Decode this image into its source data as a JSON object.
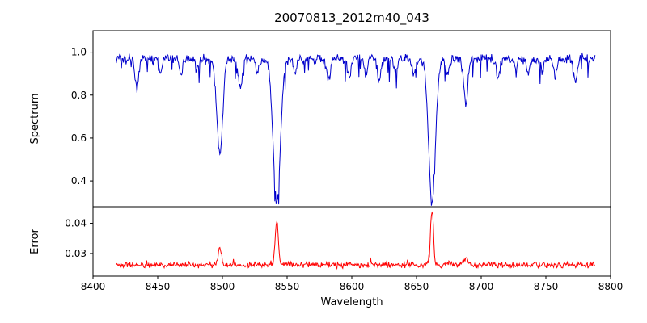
{
  "title": "20070813_2012m40_043",
  "chart_data": {
    "type": "line",
    "title": "20070813_2012m40_043",
    "xlabel": "Wavelength",
    "xlim": [
      8400,
      8800
    ],
    "x_range": [
      8418,
      8788
    ],
    "x_step": 0.5,
    "seed": 42,
    "xticks": [
      8400,
      8450,
      8500,
      8550,
      8600,
      8650,
      8700,
      8750,
      8800
    ],
    "xtick_labels": [
      "8400",
      "8450",
      "8500",
      "8550",
      "8600",
      "8650",
      "8700",
      "8750",
      "8800"
    ],
    "grid": false,
    "legend": "none",
    "panels": [
      {
        "name": "spectrum",
        "ylabel": "Spectrum",
        "ylim": [
          0.28,
          1.1
        ],
        "yticks": [
          0.4,
          0.6,
          0.8,
          1.0
        ],
        "ytick_labels": [
          "0.4",
          "0.6",
          "0.8",
          "1.0"
        ],
        "color": "#0000cc",
        "baseline": 0.968,
        "noise": 0.028,
        "dip_prob": 0.05,
        "dip_max": 0.1,
        "absorption_lines": [
          {
            "center": 8434,
            "depth": 0.14,
            "width": 1.4
          },
          {
            "center": 8452,
            "depth": 0.07,
            "width": 1.2
          },
          {
            "center": 8468,
            "depth": 0.08,
            "width": 1.2
          },
          {
            "center": 8480,
            "depth": 0.06,
            "width": 1.1
          },
          {
            "center": 8498,
            "depth": 0.45,
            "width": 2.2
          },
          {
            "center": 8514,
            "depth": 0.13,
            "width": 1.5
          },
          {
            "center": 8527,
            "depth": 0.07,
            "width": 1.2
          },
          {
            "center": 8542,
            "depth": 0.665,
            "width": 2.8
          },
          {
            "center": 8556,
            "depth": 0.06,
            "width": 1.1
          },
          {
            "center": 8582,
            "depth": 0.1,
            "width": 1.4
          },
          {
            "center": 8598,
            "depth": 0.09,
            "width": 1.3
          },
          {
            "center": 8611,
            "depth": 0.07,
            "width": 1.2
          },
          {
            "center": 8621,
            "depth": 0.1,
            "width": 1.3
          },
          {
            "center": 8634,
            "depth": 0.06,
            "width": 1.1
          },
          {
            "center": 8648,
            "depth": 0.07,
            "width": 1.2
          },
          {
            "center": 8662,
            "depth": 0.665,
            "width": 2.6
          },
          {
            "center": 8674,
            "depth": 0.08,
            "width": 1.2
          },
          {
            "center": 8688,
            "depth": 0.2,
            "width": 1.6
          },
          {
            "center": 8713,
            "depth": 0.09,
            "width": 1.3
          },
          {
            "center": 8727,
            "depth": 0.06,
            "width": 1.1
          },
          {
            "center": 8736,
            "depth": 0.07,
            "width": 1.2
          },
          {
            "center": 8747,
            "depth": 0.06,
            "width": 1.1
          },
          {
            "center": 8757,
            "depth": 0.08,
            "width": 1.2
          },
          {
            "center": 8773,
            "depth": 0.1,
            "width": 1.3
          }
        ]
      },
      {
        "name": "error",
        "ylabel": "Error",
        "ylim": [
          0.0225,
          0.0455
        ],
        "yticks": [
          0.03,
          0.04
        ],
        "ytick_labels": [
          "0.03",
          "0.04"
        ],
        "color": "#ff0000",
        "baseline": 0.0262,
        "noise": 0.0012,
        "spike_prob": 0.05,
        "spike_max": 0.0015,
        "peaks": [
          {
            "center": 8498,
            "height": 0.0055,
            "width": 1.3
          },
          {
            "center": 8542,
            "height": 0.0148,
            "width": 1.2
          },
          {
            "center": 8662,
            "height": 0.0185,
            "width": 1.1
          },
          {
            "center": 8688,
            "height": 0.0022,
            "width": 1.4
          }
        ]
      }
    ]
  }
}
